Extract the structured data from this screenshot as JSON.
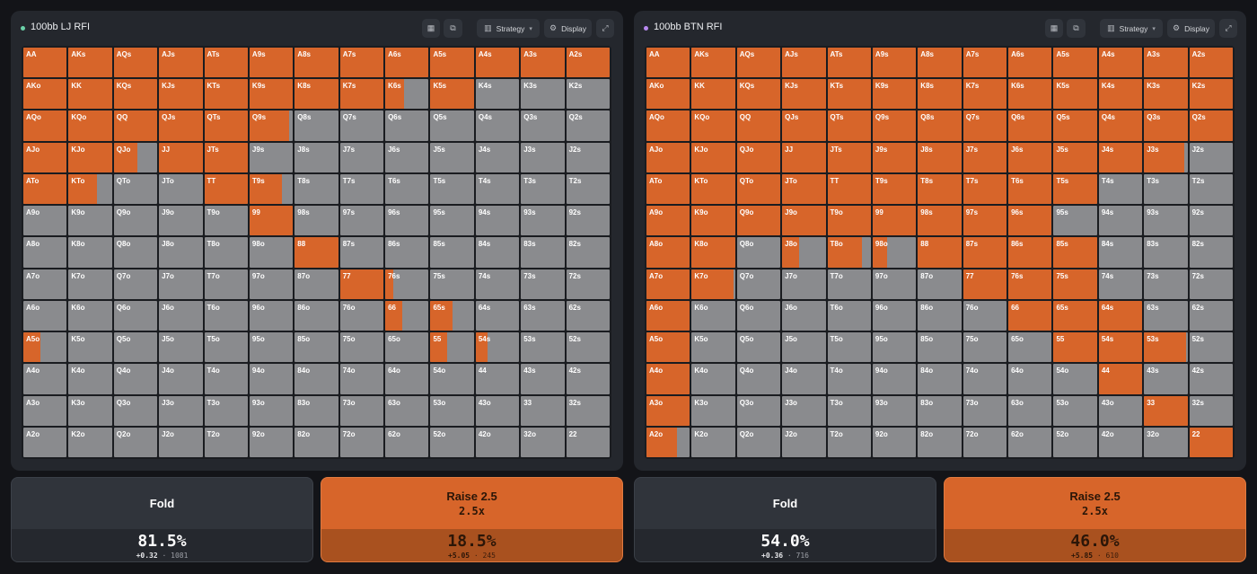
{
  "colors": {
    "raise": "#d7652a",
    "fold": "#8a8b8e",
    "lj_dot": "#6bd1a8",
    "btn_dot": "#b889f0"
  },
  "ui": {
    "strategy_label": "Strategy",
    "display_label": "Display"
  },
  "panels": [
    {
      "title": "100bb LJ RFI",
      "cells": [
        [
          "AA",
          1
        ],
        [
          "AKs",
          1
        ],
        [
          "AQs",
          1
        ],
        [
          "AJs",
          1
        ],
        [
          "ATs",
          1
        ],
        [
          "A9s",
          1
        ],
        [
          "A8s",
          1
        ],
        [
          "A7s",
          1
        ],
        [
          "A6s",
          1
        ],
        [
          "A5s",
          1
        ],
        [
          "A4s",
          1
        ],
        [
          "A3s",
          1
        ],
        [
          "A2s",
          1
        ],
        [
          "AKo",
          1
        ],
        [
          "KK",
          1
        ],
        [
          "KQs",
          1
        ],
        [
          "KJs",
          1
        ],
        [
          "KTs",
          1
        ],
        [
          "K9s",
          1
        ],
        [
          "K8s",
          1
        ],
        [
          "K7s",
          1
        ],
        [
          "K6s",
          0.43
        ],
        [
          "K5s",
          1
        ],
        [
          "K4s",
          0
        ],
        [
          "K3s",
          0
        ],
        [
          "K2s",
          0
        ],
        [
          "AQo",
          1
        ],
        [
          "KQo",
          1
        ],
        [
          "QQ",
          1
        ],
        [
          "QJs",
          1
        ],
        [
          "QTs",
          1
        ],
        [
          "Q9s",
          0.92
        ],
        [
          "Q8s",
          0
        ],
        [
          "Q7s",
          0
        ],
        [
          "Q6s",
          0
        ],
        [
          "Q5s",
          0
        ],
        [
          "Q4s",
          0
        ],
        [
          "Q3s",
          0
        ],
        [
          "Q2s",
          0
        ],
        [
          "AJo",
          1
        ],
        [
          "KJo",
          1
        ],
        [
          "QJo",
          0.55
        ],
        [
          "JJ",
          1
        ],
        [
          "JTs",
          1
        ],
        [
          "J9s",
          0
        ],
        [
          "J8s",
          0
        ],
        [
          "J7s",
          0
        ],
        [
          "J6s",
          0
        ],
        [
          "J5s",
          0
        ],
        [
          "J4s",
          0
        ],
        [
          "J3s",
          0
        ],
        [
          "J2s",
          0
        ],
        [
          "ATo",
          1
        ],
        [
          "KTo",
          0.65
        ],
        [
          "QTo",
          0
        ],
        [
          "JTo",
          0
        ],
        [
          "TT",
          1
        ],
        [
          "T9s",
          0.75
        ],
        [
          "T8s",
          0
        ],
        [
          "T7s",
          0
        ],
        [
          "T6s",
          0
        ],
        [
          "T5s",
          0
        ],
        [
          "T4s",
          0
        ],
        [
          "T3s",
          0
        ],
        [
          "T2s",
          0
        ],
        [
          "A9o",
          0
        ],
        [
          "K9o",
          0
        ],
        [
          "Q9o",
          0
        ],
        [
          "J9o",
          0
        ],
        [
          "T9o",
          0
        ],
        [
          "99",
          1
        ],
        [
          "98s",
          0
        ],
        [
          "97s",
          0
        ],
        [
          "96s",
          0
        ],
        [
          "95s",
          0
        ],
        [
          "94s",
          0
        ],
        [
          "93s",
          0
        ],
        [
          "92s",
          0
        ],
        [
          "A8o",
          0
        ],
        [
          "K8o",
          0
        ],
        [
          "Q8o",
          0
        ],
        [
          "J8o",
          0
        ],
        [
          "T8o",
          0
        ],
        [
          "98o",
          0
        ],
        [
          "88",
          1
        ],
        [
          "87s",
          0
        ],
        [
          "86s",
          0
        ],
        [
          "85s",
          0
        ],
        [
          "84s",
          0
        ],
        [
          "83s",
          0
        ],
        [
          "82s",
          0
        ],
        [
          "A7o",
          0
        ],
        [
          "K7o",
          0
        ],
        [
          "Q7o",
          0
        ],
        [
          "J7o",
          0
        ],
        [
          "T7o",
          0
        ],
        [
          "97o",
          0
        ],
        [
          "87o",
          0
        ],
        [
          "77",
          1
        ],
        [
          "76s",
          0.18
        ],
        [
          "75s",
          0
        ],
        [
          "74s",
          0
        ],
        [
          "73s",
          0
        ],
        [
          "72s",
          0
        ],
        [
          "A6o",
          0
        ],
        [
          "K6o",
          0
        ],
        [
          "Q6o",
          0
        ],
        [
          "J6o",
          0
        ],
        [
          "T6o",
          0
        ],
        [
          "96o",
          0
        ],
        [
          "86o",
          0
        ],
        [
          "76o",
          0
        ],
        [
          "66",
          0.4
        ],
        [
          "65s",
          0.5
        ],
        [
          "64s",
          0
        ],
        [
          "63s",
          0
        ],
        [
          "62s",
          0
        ],
        [
          "A5o",
          0.4
        ],
        [
          "K5o",
          0
        ],
        [
          "Q5o",
          0
        ],
        [
          "J5o",
          0
        ],
        [
          "T5o",
          0
        ],
        [
          "95o",
          0
        ],
        [
          "85o",
          0
        ],
        [
          "75o",
          0
        ],
        [
          "65o",
          0
        ],
        [
          "55",
          0.38
        ],
        [
          "54s",
          0.28
        ],
        [
          "53s",
          0
        ],
        [
          "52s",
          0
        ],
        [
          "A4o",
          0
        ],
        [
          "K4o",
          0
        ],
        [
          "Q4o",
          0
        ],
        [
          "J4o",
          0
        ],
        [
          "T4o",
          0
        ],
        [
          "94o",
          0
        ],
        [
          "84o",
          0
        ],
        [
          "74o",
          0
        ],
        [
          "64o",
          0
        ],
        [
          "54o",
          0
        ],
        [
          "44",
          0
        ],
        [
          "43s",
          0
        ],
        [
          "42s",
          0
        ],
        [
          "A3o",
          0
        ],
        [
          "K3o",
          0
        ],
        [
          "Q3o",
          0
        ],
        [
          "J3o",
          0
        ],
        [
          "T3o",
          0
        ],
        [
          "93o",
          0
        ],
        [
          "83o",
          0
        ],
        [
          "73o",
          0
        ],
        [
          "63o",
          0
        ],
        [
          "53o",
          0
        ],
        [
          "43o",
          0
        ],
        [
          "33",
          0
        ],
        [
          "32s",
          0
        ],
        [
          "A2o",
          0
        ],
        [
          "K2o",
          0
        ],
        [
          "Q2o",
          0
        ],
        [
          "J2o",
          0
        ],
        [
          "T2o",
          0
        ],
        [
          "92o",
          0
        ],
        [
          "82o",
          0
        ],
        [
          "72o",
          0
        ],
        [
          "62o",
          0
        ],
        [
          "52o",
          0
        ],
        [
          "42o",
          0
        ],
        [
          "32o",
          0
        ],
        [
          "22",
          0
        ]
      ],
      "stats": {
        "fold": {
          "label": "Fold",
          "pct": "81.5%",
          "ev": "+0.32",
          "count": "1081"
        },
        "raise": {
          "label": "Raise 2.5",
          "sub": "2.5x",
          "pct": "18.5%",
          "ev": "+5.05",
          "count": "245"
        }
      }
    },
    {
      "title": "100bb BTN RFI",
      "cells": [
        [
          "AA",
          1
        ],
        [
          "AKs",
          1
        ],
        [
          "AQs",
          1
        ],
        [
          "AJs",
          1
        ],
        [
          "ATs",
          1
        ],
        [
          "A9s",
          1
        ],
        [
          "A8s",
          1
        ],
        [
          "A7s",
          1
        ],
        [
          "A6s",
          1
        ],
        [
          "A5s",
          1
        ],
        [
          "A4s",
          1
        ],
        [
          "A3s",
          1
        ],
        [
          "A2s",
          1
        ],
        [
          "AKo",
          1
        ],
        [
          "KK",
          1
        ],
        [
          "KQs",
          1
        ],
        [
          "KJs",
          1
        ],
        [
          "KTs",
          1
        ],
        [
          "K9s",
          1
        ],
        [
          "K8s",
          1
        ],
        [
          "K7s",
          1
        ],
        [
          "K6s",
          1
        ],
        [
          "K5s",
          1
        ],
        [
          "K4s",
          1
        ],
        [
          "K3s",
          1
        ],
        [
          "K2s",
          1
        ],
        [
          "AQo",
          1
        ],
        [
          "KQo",
          1
        ],
        [
          "QQ",
          1
        ],
        [
          "QJs",
          1
        ],
        [
          "QTs",
          1
        ],
        [
          "Q9s",
          1
        ],
        [
          "Q8s",
          1
        ],
        [
          "Q7s",
          1
        ],
        [
          "Q6s",
          1
        ],
        [
          "Q5s",
          1
        ],
        [
          "Q4s",
          1
        ],
        [
          "Q3s",
          1
        ],
        [
          "Q2s",
          1
        ],
        [
          "AJo",
          1
        ],
        [
          "KJo",
          1
        ],
        [
          "QJo",
          1
        ],
        [
          "JJ",
          1
        ],
        [
          "JTs",
          1
        ],
        [
          "J9s",
          1
        ],
        [
          "J8s",
          1
        ],
        [
          "J7s",
          1
        ],
        [
          "J6s",
          1
        ],
        [
          "J5s",
          1
        ],
        [
          "J4s",
          1
        ],
        [
          "J3s",
          0.92
        ],
        [
          "J2s",
          0
        ],
        [
          "ATo",
          1
        ],
        [
          "KTo",
          1
        ],
        [
          "QTo",
          1
        ],
        [
          "JTo",
          1
        ],
        [
          "TT",
          1
        ],
        [
          "T9s",
          1
        ],
        [
          "T8s",
          1
        ],
        [
          "T7s",
          1
        ],
        [
          "T6s",
          1
        ],
        [
          "T5s",
          1
        ],
        [
          "T4s",
          0
        ],
        [
          "T3s",
          0
        ],
        [
          "T2s",
          0
        ],
        [
          "A9o",
          1
        ],
        [
          "K9o",
          1
        ],
        [
          "Q9o",
          1
        ],
        [
          "J9o",
          1
        ],
        [
          "T9o",
          1
        ],
        [
          "99",
          1
        ],
        [
          "98s",
          1
        ],
        [
          "97s",
          1
        ],
        [
          "96s",
          1
        ],
        [
          "95s",
          0
        ],
        [
          "94s",
          0
        ],
        [
          "93s",
          0
        ],
        [
          "92s",
          0
        ],
        [
          "A8o",
          1
        ],
        [
          "K8o",
          1
        ],
        [
          "Q8o",
          0
        ],
        [
          "J8o",
          0.38
        ],
        [
          "T8o",
          0.8
        ],
        [
          "98o",
          0.33
        ],
        [
          "88",
          1
        ],
        [
          "87s",
          1
        ],
        [
          "86s",
          1
        ],
        [
          "85s",
          1
        ],
        [
          "84s",
          0
        ],
        [
          "83s",
          0
        ],
        [
          "82s",
          0
        ],
        [
          "A7o",
          1
        ],
        [
          "K7o",
          0.97
        ],
        [
          "Q7o",
          0
        ],
        [
          "J7o",
          0
        ],
        [
          "T7o",
          0
        ],
        [
          "97o",
          0
        ],
        [
          "87o",
          0
        ],
        [
          "77",
          1
        ],
        [
          "76s",
          1
        ],
        [
          "75s",
          1
        ],
        [
          "74s",
          0
        ],
        [
          "73s",
          0
        ],
        [
          "72s",
          0
        ],
        [
          "A6o",
          1
        ],
        [
          "K6o",
          0
        ],
        [
          "Q6o",
          0
        ],
        [
          "J6o",
          0
        ],
        [
          "T6o",
          0
        ],
        [
          "96o",
          0
        ],
        [
          "86o",
          0
        ],
        [
          "76o",
          0
        ],
        [
          "66",
          1
        ],
        [
          "65s",
          1
        ],
        [
          "64s",
          1
        ],
        [
          "63s",
          0
        ],
        [
          "62s",
          0
        ],
        [
          "A5o",
          1
        ],
        [
          "K5o",
          0
        ],
        [
          "Q5o",
          0
        ],
        [
          "J5o",
          0
        ],
        [
          "T5o",
          0
        ],
        [
          "95o",
          0
        ],
        [
          "85o",
          0
        ],
        [
          "75o",
          0
        ],
        [
          "65o",
          0
        ],
        [
          "55",
          1
        ],
        [
          "54s",
          1
        ],
        [
          "53s",
          0.97
        ],
        [
          "52s",
          0
        ],
        [
          "A4o",
          1
        ],
        [
          "K4o",
          0
        ],
        [
          "Q4o",
          0
        ],
        [
          "J4o",
          0
        ],
        [
          "T4o",
          0
        ],
        [
          "94o",
          0
        ],
        [
          "84o",
          0
        ],
        [
          "74o",
          0
        ],
        [
          "64o",
          0
        ],
        [
          "54o",
          0
        ],
        [
          "44",
          1
        ],
        [
          "43s",
          0
        ],
        [
          "42s",
          0
        ],
        [
          "A3o",
          1
        ],
        [
          "K3o",
          0
        ],
        [
          "Q3o",
          0
        ],
        [
          "J3o",
          0
        ],
        [
          "T3o",
          0
        ],
        [
          "93o",
          0
        ],
        [
          "83o",
          0
        ],
        [
          "73o",
          0
        ],
        [
          "63o",
          0
        ],
        [
          "53o",
          0
        ],
        [
          "43o",
          0
        ],
        [
          "33",
          1
        ],
        [
          "32s",
          0
        ],
        [
          "A2o",
          0.7
        ],
        [
          "K2o",
          0
        ],
        [
          "Q2o",
          0
        ],
        [
          "J2o",
          0
        ],
        [
          "T2o",
          0
        ],
        [
          "92o",
          0
        ],
        [
          "82o",
          0
        ],
        [
          "72o",
          0
        ],
        [
          "62o",
          0
        ],
        [
          "52o",
          0
        ],
        [
          "42o",
          0
        ],
        [
          "32o",
          0
        ],
        [
          "22",
          1
        ]
      ],
      "stats": {
        "fold": {
          "label": "Fold",
          "pct": "54.0%",
          "ev": "+0.36",
          "count": "716"
        },
        "raise": {
          "label": "Raise 2.5",
          "sub": "2.5x",
          "pct": "46.0%",
          "ev": "+5.85",
          "count": "610"
        }
      }
    }
  ]
}
